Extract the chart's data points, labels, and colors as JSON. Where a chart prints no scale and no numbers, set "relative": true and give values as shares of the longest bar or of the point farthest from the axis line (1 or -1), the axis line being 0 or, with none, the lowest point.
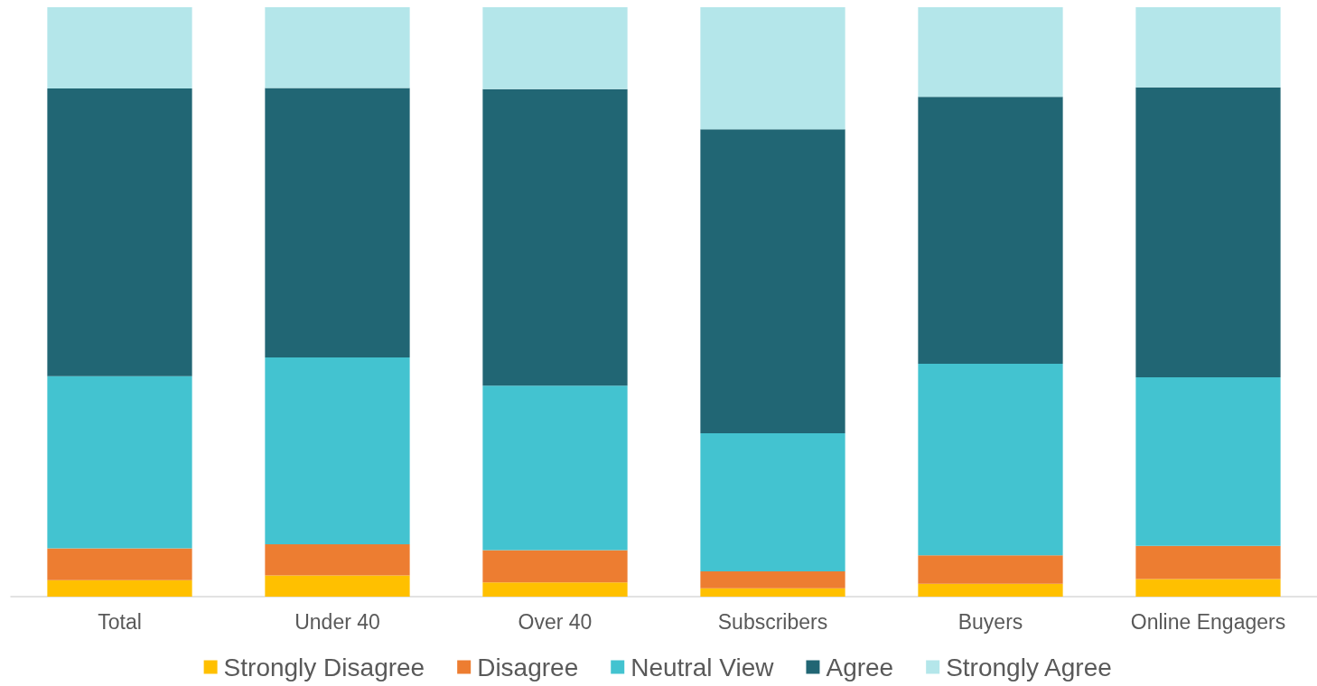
{
  "chart_data": {
    "type": "bar",
    "stacked": true,
    "relative": true,
    "grid": false,
    "legend": "bottom",
    "categories": [
      "Total",
      "Under 40",
      "Over 40",
      "Subscribers",
      "Buyers",
      "Online Engagers"
    ],
    "series": [
      {
        "name": "Strongly Disagree",
        "color": "#ffc000",
        "values": [
          0.028,
          0.036,
          0.024,
          0.014,
          0.022,
          0.03
        ]
      },
      {
        "name": "Disagree",
        "color": "#ed7d31",
        "values": [
          0.054,
          0.053,
          0.055,
          0.029,
          0.048,
          0.056
        ]
      },
      {
        "name": "Neutral View",
        "color": "#43c3d0",
        "values": [
          0.292,
          0.317,
          0.279,
          0.234,
          0.325,
          0.286
        ]
      },
      {
        "name": "Agree",
        "color": "#216674",
        "values": [
          0.488,
          0.457,
          0.503,
          0.516,
          0.453,
          0.492
        ]
      },
      {
        "name": "Strongly Agree",
        "color": "#b4e6ea",
        "values": [
          0.138,
          0.137,
          0.139,
          0.207,
          0.152,
          0.136
        ]
      }
    ]
  }
}
